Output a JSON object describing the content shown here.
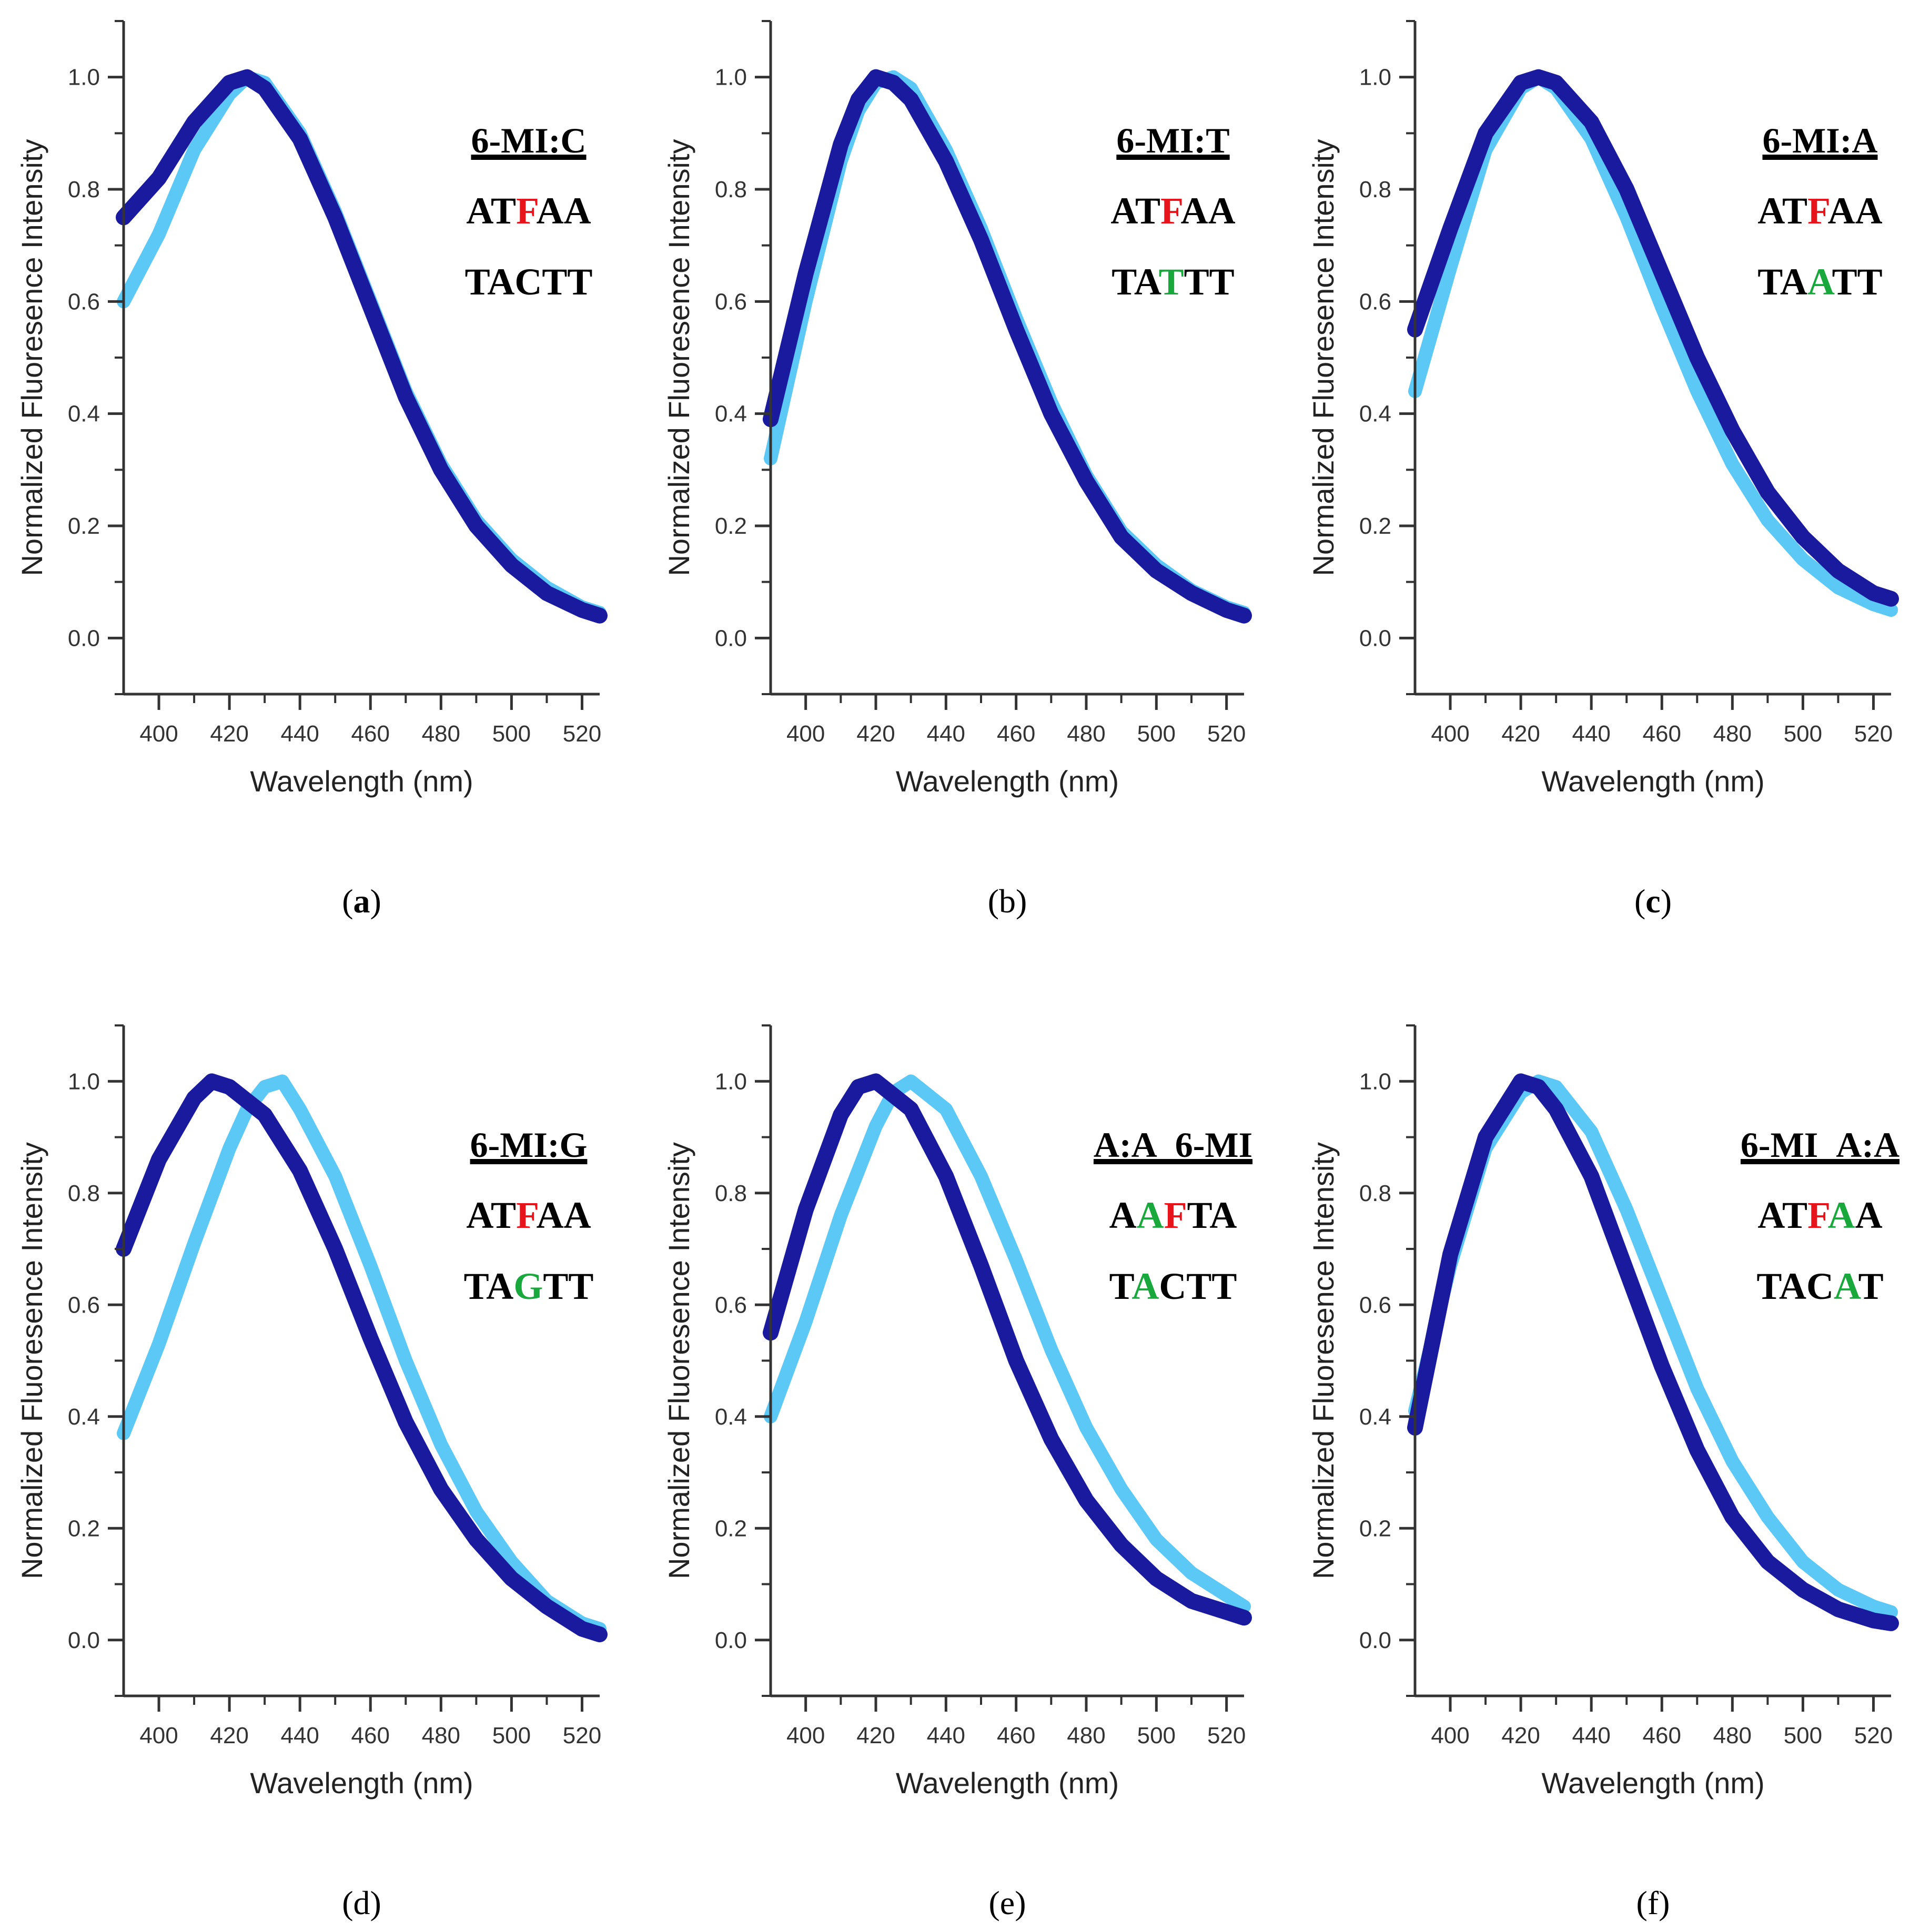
{
  "colors": {
    "dark_series": "#1a1a9e",
    "light_series": "#5bc8f5",
    "highlight_red": "#e8141b",
    "highlight_green": "#18a83c",
    "axis": "#333333"
  },
  "chart_data": [
    {
      "panel": "a",
      "caption": "(a)",
      "caption_bold": true,
      "type": "line",
      "xlabel": "Wavelength (nm)",
      "ylabel": "Normalized Fluoresence Intensity",
      "xlim": [
        390,
        525
      ],
      "ylim": [
        -0.1,
        1.1
      ],
      "xticks": [
        "400",
        "420",
        "440",
        "460",
        "480",
        "500",
        "520"
      ],
      "yticks": [
        "0.0",
        "0.2",
        "0.4",
        "0.6",
        "0.8",
        "1.0"
      ],
      "annotation": {
        "title": "6-MI:C",
        "line1": [
          {
            "t": "AT",
            "c": "k"
          },
          {
            "t": "F",
            "c": "r"
          },
          {
            "t": "AA",
            "c": "k"
          }
        ],
        "line2": [
          {
            "t": "TACTT",
            "c": "k"
          }
        ]
      },
      "series": [
        {
          "name": "dark",
          "x": [
            390,
            400,
            410,
            420,
            425,
            430,
            440,
            450,
            460,
            470,
            480,
            490,
            500,
            510,
            520,
            525
          ],
          "y": [
            0.75,
            0.82,
            0.92,
            0.99,
            1.0,
            0.98,
            0.89,
            0.75,
            0.59,
            0.43,
            0.3,
            0.2,
            0.13,
            0.08,
            0.05,
            0.04
          ]
        },
        {
          "name": "light",
          "x": [
            390,
            400,
            410,
            420,
            425,
            430,
            440,
            450,
            460,
            470,
            480,
            490,
            500,
            510,
            520,
            525
          ],
          "y": [
            0.6,
            0.72,
            0.87,
            0.97,
            1.0,
            0.99,
            0.9,
            0.76,
            0.6,
            0.44,
            0.31,
            0.21,
            0.14,
            0.09,
            0.055,
            0.045
          ]
        }
      ]
    },
    {
      "panel": "b",
      "caption": "(b)",
      "caption_bold": false,
      "type": "line",
      "xlabel": "Wavelength (nm)",
      "ylabel": "Normalized Fluoresence Intensity",
      "xlim": [
        390,
        525
      ],
      "ylim": [
        -0.1,
        1.1
      ],
      "xticks": [
        "400",
        "420",
        "440",
        "460",
        "480",
        "500",
        "520"
      ],
      "yticks": [
        "0.0",
        "0.2",
        "0.4",
        "0.6",
        "0.8",
        "1.0"
      ],
      "annotation": {
        "title": "6-MI:T",
        "line1": [
          {
            "t": "AT",
            "c": "k"
          },
          {
            "t": "F",
            "c": "r"
          },
          {
            "t": "AA",
            "c": "k"
          }
        ],
        "line2": [
          {
            "t": "TA",
            "c": "k"
          },
          {
            "t": "T",
            "c": "g"
          },
          {
            "t": "TT",
            "c": "k"
          }
        ]
      },
      "series": [
        {
          "name": "dark",
          "x": [
            390,
            400,
            410,
            415,
            420,
            425,
            430,
            440,
            450,
            460,
            470,
            480,
            490,
            500,
            510,
            520,
            525
          ],
          "y": [
            0.39,
            0.65,
            0.88,
            0.96,
            1.0,
            0.99,
            0.96,
            0.85,
            0.71,
            0.55,
            0.4,
            0.28,
            0.18,
            0.12,
            0.08,
            0.05,
            0.04
          ]
        },
        {
          "name": "light",
          "x": [
            390,
            400,
            410,
            415,
            420,
            425,
            430,
            440,
            450,
            460,
            470,
            480,
            490,
            500,
            510,
            520,
            525
          ],
          "y": [
            0.32,
            0.6,
            0.85,
            0.94,
            0.99,
            1.0,
            0.98,
            0.87,
            0.73,
            0.57,
            0.42,
            0.29,
            0.19,
            0.13,
            0.085,
            0.055,
            0.045
          ]
        }
      ]
    },
    {
      "panel": "c",
      "caption": "(c)",
      "caption_bold": true,
      "type": "line",
      "xlabel": "Wavelength (nm)",
      "ylabel": "Normalized Fluoresence Intensity",
      "xlim": [
        390,
        525
      ],
      "ylim": [
        -0.1,
        1.1
      ],
      "xticks": [
        "400",
        "420",
        "440",
        "460",
        "480",
        "500",
        "520"
      ],
      "yticks": [
        "0.0",
        "0.2",
        "0.4",
        "0.6",
        "0.8",
        "1.0"
      ],
      "annotation": {
        "title": "6-MI:A",
        "line1": [
          {
            "t": "AT",
            "c": "k"
          },
          {
            "t": "F",
            "c": "r"
          },
          {
            "t": "AA",
            "c": "k"
          }
        ],
        "line2": [
          {
            "t": "TA",
            "c": "k"
          },
          {
            "t": "A",
            "c": "g"
          },
          {
            "t": "TT",
            "c": "k"
          }
        ]
      },
      "series": [
        {
          "name": "dark",
          "x": [
            390,
            400,
            410,
            420,
            425,
            430,
            440,
            450,
            460,
            470,
            480,
            490,
            500,
            510,
            520,
            525
          ],
          "y": [
            0.55,
            0.73,
            0.9,
            0.99,
            1.0,
            0.99,
            0.92,
            0.8,
            0.65,
            0.5,
            0.37,
            0.26,
            0.18,
            0.12,
            0.08,
            0.07
          ]
        },
        {
          "name": "light",
          "x": [
            390,
            400,
            410,
            420,
            425,
            430,
            440,
            450,
            460,
            470,
            480,
            490,
            500,
            510,
            520,
            525
          ],
          "y": [
            0.44,
            0.66,
            0.87,
            0.98,
            1.0,
            0.98,
            0.89,
            0.75,
            0.59,
            0.44,
            0.31,
            0.21,
            0.14,
            0.09,
            0.06,
            0.05
          ]
        }
      ]
    },
    {
      "panel": "d",
      "caption": "(d)",
      "caption_bold": false,
      "type": "line",
      "xlabel": "Wavelength (nm)",
      "ylabel": "Normalized Fluoresence Intensity",
      "xlim": [
        390,
        525
      ],
      "ylim": [
        -0.1,
        1.1
      ],
      "xticks": [
        "400",
        "420",
        "440",
        "460",
        "480",
        "500",
        "520"
      ],
      "yticks": [
        "0.0",
        "0.2",
        "0.4",
        "0.6",
        "0.8",
        "1.0"
      ],
      "annotation": {
        "title": "6-MI:G",
        "line1": [
          {
            "t": "AT",
            "c": "k"
          },
          {
            "t": "F",
            "c": "r"
          },
          {
            "t": "AA",
            "c": "k"
          }
        ],
        "line2": [
          {
            "t": "TA",
            "c": "k"
          },
          {
            "t": "G",
            "c": "g"
          },
          {
            "t": "TT",
            "c": "k"
          }
        ]
      },
      "series": [
        {
          "name": "dark",
          "x": [
            390,
            400,
            410,
            415,
            420,
            430,
            440,
            450,
            460,
            470,
            480,
            490,
            500,
            510,
            520,
            525
          ],
          "y": [
            0.7,
            0.86,
            0.97,
            1.0,
            0.99,
            0.94,
            0.84,
            0.7,
            0.54,
            0.39,
            0.27,
            0.18,
            0.11,
            0.06,
            0.02,
            0.01
          ]
        },
        {
          "name": "light",
          "x": [
            390,
            400,
            410,
            420,
            425,
            430,
            435,
            440,
            450,
            460,
            470,
            480,
            490,
            500,
            510,
            520,
            525
          ],
          "y": [
            0.37,
            0.53,
            0.71,
            0.88,
            0.95,
            0.99,
            1.0,
            0.95,
            0.83,
            0.67,
            0.5,
            0.35,
            0.23,
            0.14,
            0.07,
            0.03,
            0.02
          ]
        }
      ]
    },
    {
      "panel": "e",
      "caption": "(e)",
      "caption_bold": false,
      "type": "line",
      "xlabel": "Wavelength (nm)",
      "ylabel": "Normalized Fluoresence Intensity",
      "xlim": [
        390,
        525
      ],
      "ylim": [
        -0.1,
        1.1
      ],
      "xticks": [
        "400",
        "420",
        "440",
        "460",
        "480",
        "500",
        "520"
      ],
      "yticks": [
        "0.0",
        "0.2",
        "0.4",
        "0.6",
        "0.8",
        "1.0"
      ],
      "annotation": {
        "title": "A:A_6-MI",
        "line1": [
          {
            "t": "A",
            "c": "k"
          },
          {
            "t": "A",
            "c": "g"
          },
          {
            "t": "F",
            "c": "r"
          },
          {
            "t": "TA",
            "c": "k"
          }
        ],
        "line2": [
          {
            "t": "T",
            "c": "k"
          },
          {
            "t": "A",
            "c": "g"
          },
          {
            "t": "CTT",
            "c": "k"
          }
        ]
      },
      "series": [
        {
          "name": "dark",
          "x": [
            390,
            400,
            410,
            415,
            420,
            430,
            440,
            450,
            460,
            470,
            480,
            490,
            500,
            510,
            520,
            525
          ],
          "y": [
            0.55,
            0.77,
            0.94,
            0.99,
            1.0,
            0.95,
            0.83,
            0.67,
            0.5,
            0.36,
            0.25,
            0.17,
            0.11,
            0.07,
            0.05,
            0.04
          ]
        },
        {
          "name": "light",
          "x": [
            390,
            400,
            410,
            420,
            425,
            430,
            440,
            450,
            460,
            470,
            480,
            490,
            500,
            510,
            520,
            525
          ],
          "y": [
            0.4,
            0.57,
            0.76,
            0.92,
            0.98,
            1.0,
            0.95,
            0.83,
            0.68,
            0.52,
            0.38,
            0.27,
            0.18,
            0.12,
            0.08,
            0.06
          ]
        }
      ]
    },
    {
      "panel": "f",
      "caption": "(f)",
      "caption_bold": false,
      "type": "line",
      "xlabel": "Wavelength (nm)",
      "ylabel": "Normalized Fluoresence Intensity",
      "xlim": [
        390,
        525
      ],
      "ylim": [
        -0.1,
        1.1
      ],
      "xticks": [
        "400",
        "420",
        "440",
        "460",
        "480",
        "500",
        "520"
      ],
      "yticks": [
        "0.0",
        "0.2",
        "0.4",
        "0.6",
        "0.8",
        "1.0"
      ],
      "annotation": {
        "title": "6-MI_A:A",
        "line1": [
          {
            "t": "AT",
            "c": "k"
          },
          {
            "t": "F",
            "c": "r"
          },
          {
            "t": "A",
            "c": "g"
          },
          {
            "t": "A",
            "c": "k"
          }
        ],
        "line2": [
          {
            "t": "TAC",
            "c": "k"
          },
          {
            "t": "A",
            "c": "g"
          },
          {
            "t": "T",
            "c": "k"
          }
        ]
      },
      "series": [
        {
          "name": "dark",
          "x": [
            390,
            400,
            410,
            420,
            425,
            430,
            440,
            450,
            460,
            470,
            480,
            490,
            500,
            510,
            520,
            525
          ],
          "y": [
            0.38,
            0.69,
            0.9,
            1.0,
            0.99,
            0.95,
            0.83,
            0.66,
            0.49,
            0.34,
            0.22,
            0.14,
            0.09,
            0.055,
            0.035,
            0.03
          ]
        },
        {
          "name": "light",
          "x": [
            390,
            400,
            410,
            420,
            425,
            430,
            440,
            450,
            460,
            470,
            480,
            490,
            500,
            510,
            520,
            525
          ],
          "y": [
            0.41,
            0.67,
            0.88,
            0.98,
            1.0,
            0.99,
            0.91,
            0.77,
            0.61,
            0.45,
            0.32,
            0.22,
            0.14,
            0.09,
            0.06,
            0.05
          ]
        }
      ]
    }
  ]
}
